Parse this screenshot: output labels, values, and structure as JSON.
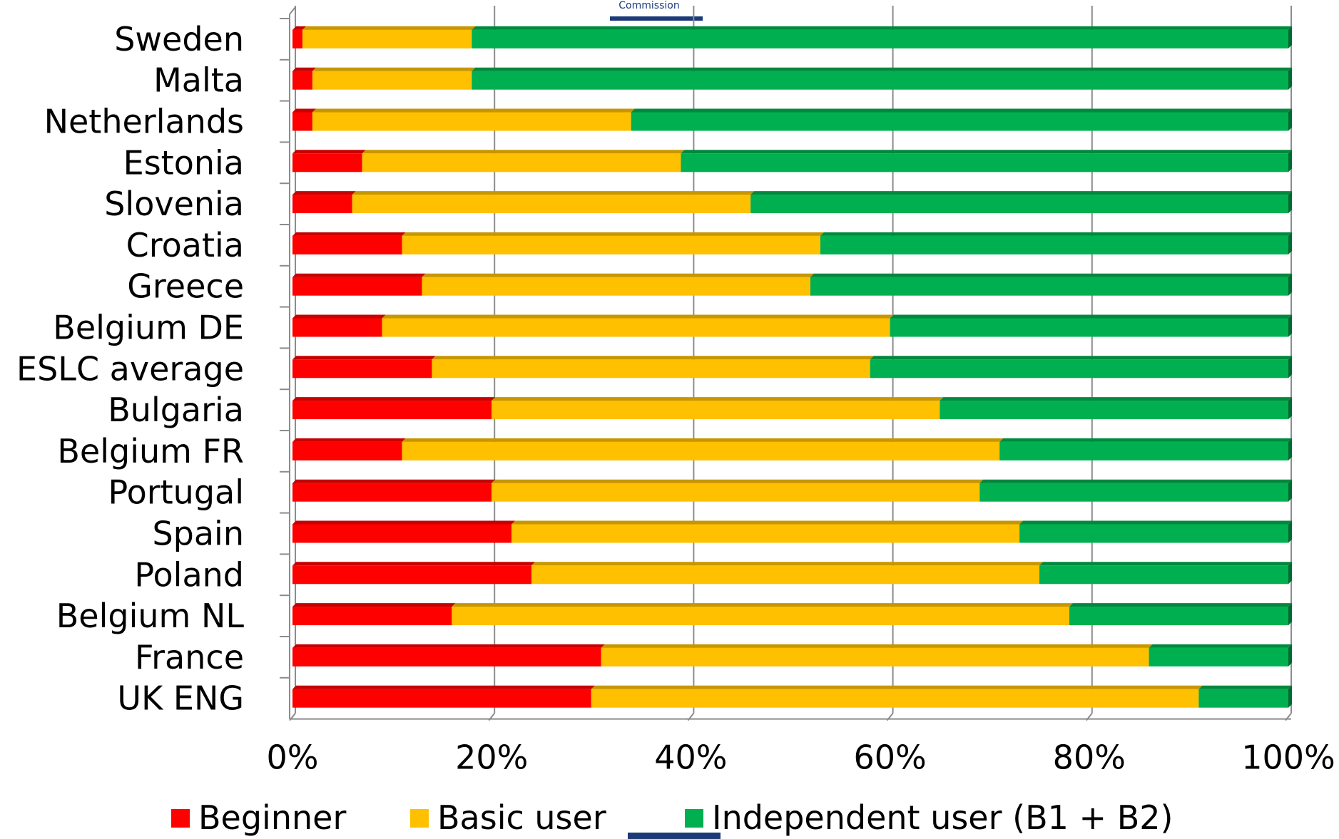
{
  "header": {
    "logo_text": "Commission"
  },
  "chart_data": {
    "type": "bar",
    "orientation": "horizontal",
    "stacked": "percent",
    "categories": [
      "Sweden",
      "Malta",
      "Netherlands",
      "Estonia",
      "Slovenia",
      "Croatia",
      "Greece",
      "Belgium DE",
      "ESLC average",
      "Bulgaria",
      "Belgium FR",
      "Portugal",
      "Spain",
      "Poland",
      "Belgium NL",
      "France",
      "UK ENG"
    ],
    "series": [
      {
        "name": "Beginner",
        "color": "#ff0000",
        "values": [
          1,
          2,
          2,
          7,
          6,
          11,
          13,
          9,
          14,
          20,
          11,
          20,
          22,
          24,
          16,
          31,
          30
        ]
      },
      {
        "name": "Basic user",
        "color": "#ffc000",
        "values": [
          17,
          16,
          32,
          32,
          40,
          42,
          39,
          51,
          44,
          45,
          60,
          49,
          51,
          51,
          62,
          55,
          61
        ]
      },
      {
        "name": "Independent user (B1 + B2)",
        "color": "#00b050",
        "values": [
          82,
          82,
          66,
          61,
          54,
          47,
          48,
          40,
          42,
          35,
          29,
          31,
          27,
          25,
          22,
          14,
          9
        ]
      }
    ],
    "xaxis": {
      "ticks": [
        "0%",
        "20%",
        "40%",
        "60%",
        "80%",
        "100%"
      ],
      "range": [
        0,
        100
      ]
    },
    "grid": true,
    "legend_position": "bottom"
  }
}
